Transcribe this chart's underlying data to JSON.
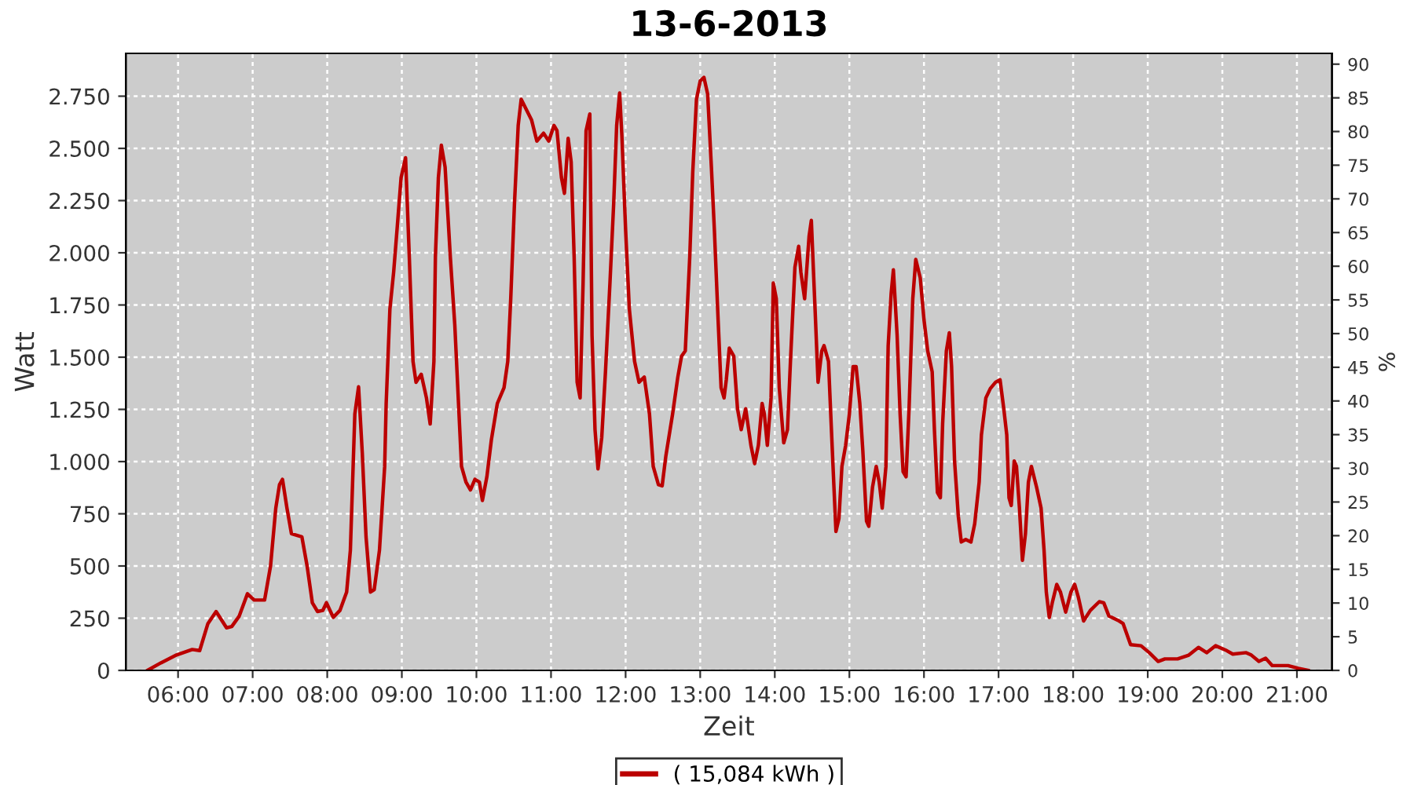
{
  "chart_data": {
    "type": "line",
    "title": "13-6-2013",
    "xlabel": "Zeit",
    "ylabel": "Watt",
    "y2label": "%",
    "xlim": [
      5.3,
      21.47
    ],
    "xticks": [
      {
        "value": 6,
        "label": "06:00"
      },
      {
        "value": 7,
        "label": "07:00"
      },
      {
        "value": 8,
        "label": "08:00"
      },
      {
        "value": 9,
        "label": "09:00"
      },
      {
        "value": 10,
        "label": "10:00"
      },
      {
        "value": 11,
        "label": "11:00"
      },
      {
        "value": 12,
        "label": "12:00"
      },
      {
        "value": 13,
        "label": "13:00"
      },
      {
        "value": 14,
        "label": "14:00"
      },
      {
        "value": 15,
        "label": "15:00"
      },
      {
        "value": 16,
        "label": "16:00"
      },
      {
        "value": 17,
        "label": "17:00"
      },
      {
        "value": 18,
        "label": "18:00"
      },
      {
        "value": 19,
        "label": "19:00"
      },
      {
        "value": 20,
        "label": "20:00"
      },
      {
        "value": 21,
        "label": "21:00"
      }
    ],
    "ylim": [
      0,
      2955
    ],
    "yticks": [
      0,
      250,
      500,
      750,
      {
        "value": 1000,
        "label": "1.000"
      },
      {
        "value": 1250,
        "label": "1.250"
      },
      {
        "value": 1500,
        "label": "1.500"
      },
      {
        "value": 1750,
        "label": "1.750"
      },
      {
        "value": 2000,
        "label": "2.000"
      },
      {
        "value": 2250,
        "label": "2.250"
      },
      {
        "value": 2500,
        "label": "2.500"
      },
      {
        "value": 2750,
        "label": "2.750"
      }
    ],
    "y2lim": [
      0,
      91.6
    ],
    "y2ticks": [
      0,
      5,
      10,
      15,
      20,
      25,
      30,
      35,
      40,
      45,
      50,
      55,
      60,
      65,
      70,
      75,
      80,
      85,
      90
    ],
    "grid": true,
    "legend": "bottom",
    "line_style": "solid",
    "series": [
      {
        "name": "( 15,084 kWh )",
        "color": "#bb0000",
        "x": [
          5.59,
          5.77,
          5.98,
          6.19,
          6.29,
          6.4,
          6.51,
          6.65,
          6.72,
          6.82,
          6.93,
          7.02,
          7.16,
          7.24,
          7.31,
          7.36,
          7.4,
          7.46,
          7.52,
          7.66,
          7.73,
          7.8,
          7.87,
          7.94,
          7.99,
          8.08,
          8.17,
          8.26,
          8.31,
          8.37,
          8.42,
          8.47,
          8.52,
          8.58,
          8.63,
          8.7,
          8.77,
          8.79,
          8.84,
          8.89,
          8.94,
          8.99,
          9.05,
          9.1,
          9.15,
          9.19,
          9.26,
          9.33,
          9.38,
          9.43,
          9.45,
          9.49,
          9.53,
          9.58,
          9.65,
          9.71,
          9.76,
          9.8,
          9.86,
          9.92,
          9.98,
          10.04,
          10.08,
          10.14,
          10.2,
          10.28,
          10.37,
          10.42,
          10.46,
          10.51,
          10.56,
          10.6,
          10.67,
          10.74,
          10.81,
          10.9,
          10.97,
          11.04,
          11.08,
          11.14,
          11.18,
          11.23,
          11.27,
          11.31,
          11.35,
          11.39,
          11.43,
          11.47,
          11.52,
          11.55,
          11.59,
          11.63,
          11.68,
          11.73,
          11.79,
          11.84,
          11.88,
          11.92,
          11.95,
          12.0,
          12.05,
          12.12,
          12.18,
          12.25,
          12.32,
          12.37,
          12.44,
          12.49,
          12.54,
          12.63,
          12.7,
          12.75,
          12.8,
          12.86,
          12.9,
          12.95,
          13.0,
          13.05,
          13.1,
          13.15,
          13.19,
          13.24,
          13.28,
          13.32,
          13.35,
          13.39,
          13.45,
          13.5,
          13.55,
          13.61,
          13.68,
          13.73,
          13.78,
          13.83,
          13.86,
          13.9,
          13.95,
          13.98,
          14.02,
          14.06,
          14.12,
          14.17,
          14.21,
          14.27,
          14.32,
          14.35,
          14.4,
          14.46,
          14.49,
          14.54,
          14.58,
          14.63,
          14.66,
          14.72,
          14.75,
          14.79,
          14.82,
          14.86,
          14.9,
          14.95,
          15.0,
          15.05,
          15.09,
          15.14,
          15.18,
          15.23,
          15.26,
          15.31,
          15.36,
          15.4,
          15.44,
          15.49,
          15.52,
          15.56,
          15.59,
          15.64,
          15.68,
          15.72,
          15.76,
          15.8,
          15.85,
          15.89,
          15.95,
          16.0,
          16.05,
          16.11,
          16.14,
          16.18,
          16.22,
          16.25,
          16.3,
          16.34,
          16.37,
          16.41,
          16.46,
          16.5,
          16.56,
          16.63,
          16.68,
          16.74,
          16.77,
          16.83,
          16.89,
          16.96,
          17.02,
          17.07,
          17.11,
          17.14,
          17.17,
          17.21,
          17.24,
          17.28,
          17.32,
          17.36,
          17.4,
          17.44,
          17.51,
          17.57,
          17.61,
          17.64,
          17.68,
          17.72,
          17.78,
          17.83,
          17.9,
          17.97,
          18.02,
          18.07,
          18.14,
          18.23,
          18.35,
          18.41,
          18.48,
          18.6,
          18.67,
          18.77,
          18.91,
          19.02,
          19.14,
          19.23,
          19.4,
          19.55,
          19.68,
          19.79,
          19.91,
          20.04,
          20.14,
          20.32,
          20.39,
          20.49,
          20.58,
          20.67,
          20.88,
          21.02,
          21.15
        ],
        "values": [
          0,
          36,
          74,
          100,
          95,
          224,
          282,
          204,
          210,
          260,
          367,
          337,
          337,
          500,
          777,
          890,
          915,
          777,
          655,
          640,
          500,
          324,
          282,
          287,
          324,
          254,
          287,
          375,
          575,
          1228,
          1358,
          1040,
          640,
          375,
          387,
          575,
          977,
          1278,
          1730,
          1906,
          2130,
          2360,
          2455,
          1981,
          1480,
          1380,
          1418,
          1305,
          1180,
          1480,
          1981,
          2360,
          2515,
          2410,
          1981,
          1655,
          1278,
          977,
          902,
          864,
          915,
          902,
          814,
          927,
          1103,
          1278,
          1354,
          1480,
          1780,
          2235,
          2610,
          2735,
          2685,
          2635,
          2535,
          2573,
          2535,
          2610,
          2585,
          2360,
          2285,
          2548,
          2435,
          1981,
          1380,
          1305,
          1855,
          2585,
          2665,
          1604,
          1153,
          965,
          1115,
          1430,
          1855,
          2235,
          2610,
          2765,
          2560,
          2110,
          1730,
          1480,
          1380,
          1405,
          1228,
          977,
          890,
          884,
          1028,
          1228,
          1405,
          1505,
          1530,
          1981,
          2385,
          2735,
          2823,
          2840,
          2760,
          2410,
          2110,
          1680,
          1354,
          1305,
          1392,
          1543,
          1505,
          1253,
          1153,
          1253,
          1078,
          990,
          1078,
          1278,
          1228,
          1078,
          1305,
          1855,
          1780,
          1354,
          1090,
          1153,
          1480,
          1931,
          2031,
          1906,
          1780,
          2080,
          2155,
          1730,
          1380,
          1530,
          1555,
          1480,
          1228,
          902,
          665,
          727,
          977,
          1078,
          1228,
          1455,
          1455,
          1278,
          1053,
          715,
          690,
          877,
          977,
          902,
          777,
          977,
          1555,
          1805,
          1918,
          1604,
          1228,
          952,
          927,
          1253,
          1780,
          1968,
          1880,
          1680,
          1530,
          1430,
          1153,
          852,
          827,
          1180,
          1530,
          1617,
          1455,
          1003,
          740,
          615,
          627,
          615,
          702,
          902,
          1128,
          1305,
          1350,
          1380,
          1392,
          1253,
          1128,
          827,
          790,
          1003,
          977,
          777,
          527,
          653,
          902,
          977,
          877,
          777,
          575,
          375,
          254,
          324,
          412,
          375,
          279,
          375,
          412,
          350,
          237,
          287,
          329,
          324,
          260,
          240,
          224,
          123,
          118,
          85,
          43,
          55,
          55,
          73,
          110,
          85,
          118,
          98,
          78,
          85,
          73,
          43,
          58,
          23,
          23,
          10,
          0
        ]
      }
    ]
  }
}
